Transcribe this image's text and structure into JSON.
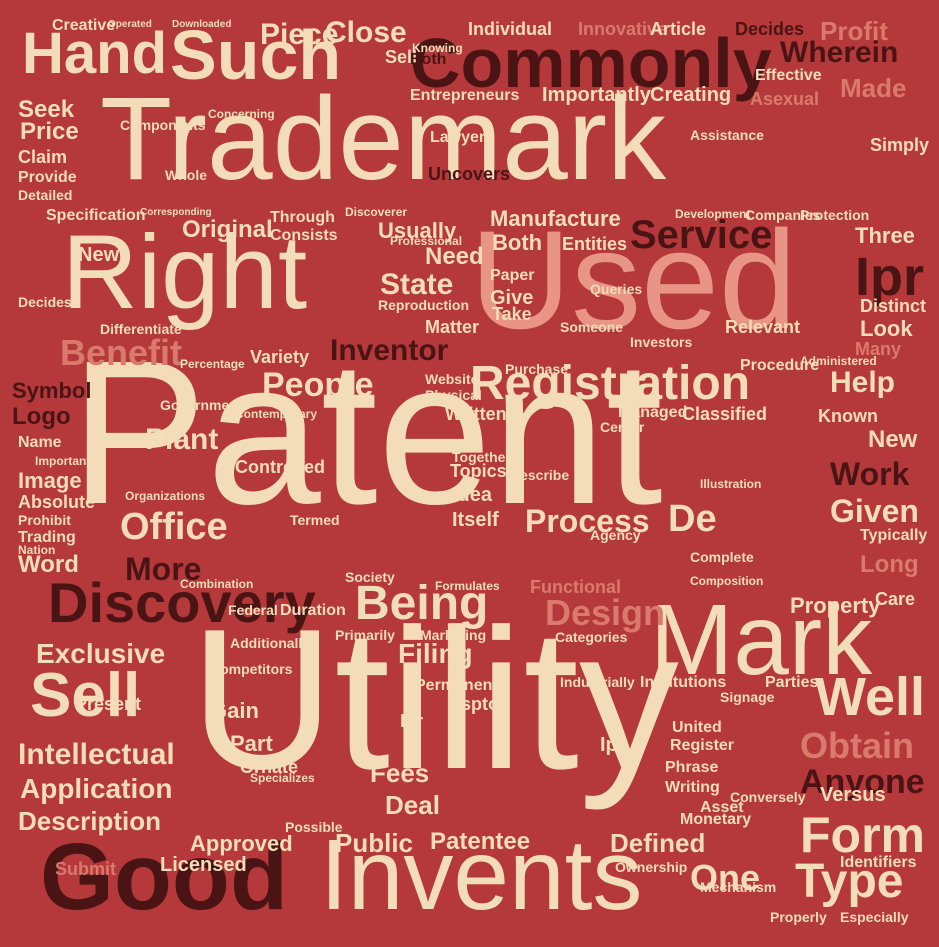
{
  "background": "#b5393a",
  "palette": {
    "cream": "#f2ddb8",
    "dark": "#4a1414",
    "pink": "#e89585",
    "rose": "#d97a6c"
  },
  "words": {
    "patent": "Patent",
    "utility": "Utility",
    "trademark": "Trademark",
    "right": "Right",
    "used": "Used",
    "mark": "Mark",
    "good": "Good",
    "invents": "Invents",
    "commonly": "Commonly",
    "discovery": "Discovery",
    "registration": "Registration",
    "such": "Such",
    "hand": "Hand",
    "sell": "Sell",
    "intellectual": "Intellectual",
    "application": "Application",
    "description": "Description",
    "exclusive": "Exclusive",
    "office": "Office",
    "people": "People",
    "inventor": "Inventor",
    "benefit": "Benefit",
    "service": "Service",
    "process": "Process",
    "being": "Being",
    "design": "Design",
    "form": "Form",
    "type": "Type",
    "one": "One",
    "well": "Well",
    "obtain": "Obtain",
    "anyone": "Anyone",
    "given": "Given",
    "help": "Help",
    "ipr": "Ipr",
    "de": "De",
    "more": "More",
    "plant": "Plant",
    "public": "Public",
    "close": "Close",
    "piece": "Piece",
    "wherein": "Wherein",
    "profit": "Profit",
    "made": "Made",
    "seek": "Seek",
    "price": "Price",
    "logo": "Logo",
    "symbol": "Symbol",
    "word": "Word",
    "filing": "Filing",
    "fees": "Fees",
    "deal": "Deal",
    "patentee": "Patentee",
    "defined": "Defined",
    "approved": "Approved",
    "licensed": "Licensed",
    "submit": "Submit",
    "creative": "Creative",
    "innovative": "Innovative",
    "article": "Article",
    "individual": "Individual",
    "entrepreneurs": "Entrepreneurs",
    "importantly": "Importantly",
    "creating": "Creating",
    "asexual": "Asexual",
    "effective": "Effective",
    "uncovers": "Uncovers",
    "manufacture": "Manufacture",
    "specification": "Specification",
    "original": "Original",
    "new": "New",
    "usually": "Usually",
    "both": "Both",
    "entities": "Entities",
    "three": "Three",
    "lot": "Lot",
    "tool": "Tool",
    "state": "State",
    "need": "Need",
    "give": "Give",
    "take": "Take",
    "matter": "Matter",
    "relevant": "Relevant",
    "many": "Many",
    "look": "Look",
    "distinct": "Distinct",
    "written": "Written",
    "variety": "Variety",
    "controlled": "Controlled",
    "managed": "Managed",
    "classified": "Classified",
    "known": "Known",
    "work": "Work",
    "long": "Long",
    "typically": "Typically",
    "gain": "Gain",
    "part": "Part",
    "itself": "Itself",
    "idea": "Idea",
    "topics": "Topics",
    "together": "Together",
    "federal": "Federal",
    "duration": "Duration",
    "functional": "Functional",
    "property": "Property",
    "primarily": "Primarily",
    "additionally": "Additionally",
    "marketing": "Marketing",
    "institutions": "Institutions",
    "parties": "Parties",
    "industrially": "Industrially",
    "permanent": "Permanent",
    "uspto": "Uspto",
    "register": "Register",
    "united": "United",
    "phrase": "Phrase",
    "writing": "Writing",
    "versus": "Versus",
    "asset": "Asset",
    "conversely": "Conversely",
    "identifiers": "Identifiers",
    "especially": "Especially",
    "ownership": "Ownership",
    "mechanism": "Mechanism",
    "properly": "Properly",
    "image": "Image",
    "absolute": "Absolute",
    "prohibit": "Prohibit",
    "trading": "Trading",
    "nation": "Nation",
    "name": "Name",
    "claim": "Claim",
    "provide": "Provide",
    "detailed": "Detailed",
    "consists": "Consists",
    "through": "Through",
    "website": "Website",
    "physical": "Physical",
    "purchase": "Purchase",
    "procedure": "Procedure",
    "certain": "Center",
    "agency": "Agency",
    "simply": "Simply",
    "whole": "Whole",
    "present": "Present",
    "possible": "Possible",
    "lawyer": "Lawyer",
    "someone": "Someone",
    "paper": "Paper",
    "queries": "Queries",
    "ornate": "Ornate",
    "components": "Components",
    "government": "Government",
    "signage": "Signage",
    "society": "Society",
    "care": "Care",
    "termed": "Termed",
    "complete": "Complete",
    "competitors": "Competitors",
    "composition": "Composition",
    "downloaded": "Downloaded",
    "operated": "Operated",
    "companies": "Companies",
    "formulates": "Formulates",
    "describe": "Describe",
    "decides": "Decides",
    "reproduction": "Reproduction",
    "protection": "Protection",
    "development": "Development",
    "contemporary": "Contemporary",
    "investors": "Investors",
    "categories": "Categories",
    "administered": "Administered",
    "differentiate": "Differentiate",
    "percentage": "Percentage",
    "organizations": "Organizations",
    "specializes": "Specializes",
    "illustration": "Illustration",
    "monetary": "Monetary",
    "professional": "Professional",
    "combination": "Combination",
    "corresponding": "Corresponding",
    "assistance": "Assistance",
    "discoverer": "Discoverer",
    "important": "Important",
    "knowing": "Knowing",
    "concerning": "Concerning"
  }
}
